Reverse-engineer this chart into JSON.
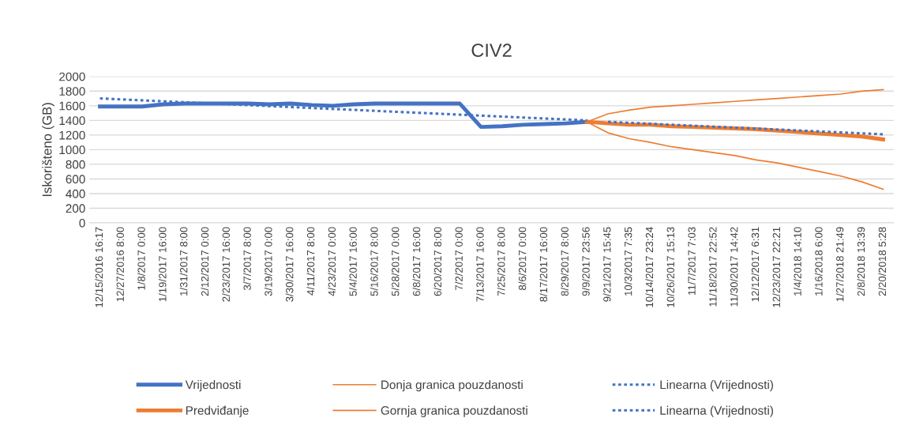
{
  "chart_data": {
    "type": "line",
    "title": "CIV2",
    "ylabel": "Iskorišteno (GB)",
    "categories": [
      "12/15/2016 16:17",
      "12/27/2016 8:00",
      "1/8/2017 0:00",
      "1/19/2017 16:00",
      "1/31/2017 8:00",
      "2/12/2017 0:00",
      "2/23/2017 16:00",
      "3/7/2017 8:00",
      "3/19/2017 0:00",
      "3/30/2017 16:00",
      "4/11/2017 8:00",
      "4/23/2017 0:00",
      "5/4/2017 16:00",
      "5/16/2017 8:00",
      "5/28/2017 0:00",
      "6/8/2017 16:00",
      "6/20/2017 8:00",
      "7/2/2017 0:00",
      "7/13/2017 16:00",
      "7/25/2017 8:00",
      "8/6/2017 0:00",
      "8/17/2017 16:00",
      "8/29/2017 8:00",
      "9/9/2017 23:56",
      "9/21/2017 15:45",
      "10/3/2017 7:35",
      "10/14/2017 23:24",
      "10/26/2017 15:13",
      "11/7/2017 7:03",
      "11/18/2017 22:52",
      "11/30/2017 14:42",
      "12/12/2017 6:31",
      "12/23/2017 22:21",
      "1/4/2018 14:10",
      "1/16/2018 6:00",
      "1/27/2018 21:49",
      "2/8/2018 13:39",
      "2/20/2018 5:28"
    ],
    "ylim": [
      0,
      2000
    ],
    "yticks": [
      0,
      200,
      400,
      600,
      800,
      1000,
      1200,
      1400,
      1600,
      1800,
      2000
    ],
    "grid": "y",
    "legend": "bottom",
    "series": [
      {
        "name": "Vrijednosti",
        "color": "#4472c4",
        "line_style": "solid",
        "values": [
          1590,
          1590,
          1590,
          1620,
          1630,
          1630,
          1630,
          1630,
          1620,
          1630,
          1610,
          1600,
          1620,
          1630,
          1630,
          1630,
          1630,
          1630,
          1310,
          1320,
          1340,
          1350,
          1360,
          1380,
          null,
          null,
          null,
          null,
          null,
          null,
          null,
          null,
          null,
          null,
          null,
          null,
          null,
          null
        ]
      },
      {
        "name": "Predviđanje",
        "color": "#ed7d31",
        "line_style": "solid",
        "values": [
          null,
          null,
          null,
          null,
          null,
          null,
          null,
          null,
          null,
          null,
          null,
          null,
          null,
          null,
          null,
          null,
          null,
          null,
          null,
          null,
          null,
          null,
          null,
          1380,
          1360,
          1340,
          1340,
          1320,
          1310,
          1300,
          1290,
          1280,
          1260,
          1240,
          1220,
          1200,
          1180,
          1140
        ]
      },
      {
        "name": "Donja granica pouzdanosti",
        "color": "#ed7d31",
        "line_style": "solid",
        "values": [
          null,
          null,
          null,
          null,
          null,
          null,
          null,
          null,
          null,
          null,
          null,
          null,
          null,
          null,
          null,
          null,
          null,
          null,
          null,
          null,
          null,
          null,
          null,
          1380,
          1230,
          1150,
          1100,
          1040,
          1000,
          960,
          920,
          860,
          820,
          760,
          700,
          640,
          560,
          460
        ]
      },
      {
        "name": "Gornja granica pouzdanosti",
        "color": "#ed7d31",
        "line_style": "solid",
        "values": [
          null,
          null,
          null,
          null,
          null,
          null,
          null,
          null,
          null,
          null,
          null,
          null,
          null,
          null,
          null,
          null,
          null,
          null,
          null,
          null,
          null,
          null,
          null,
          1380,
          1490,
          1540,
          1580,
          1600,
          1620,
          1640,
          1660,
          1680,
          1700,
          1720,
          1740,
          1760,
          1800,
          1820
        ]
      },
      {
        "name": "Linearna (Vrijednosti)",
        "color": "#4472c4",
        "line_style": "dotted",
        "values": [
          1700,
          null,
          null,
          null,
          null,
          null,
          null,
          null,
          null,
          null,
          null,
          null,
          null,
          null,
          null,
          null,
          null,
          null,
          null,
          null,
          null,
          null,
          null,
          1400,
          null,
          null,
          null,
          null,
          null,
          null,
          null,
          null,
          null,
          null,
          null,
          null,
          null,
          null
        ]
      },
      {
        "name": "Linearna (Vrijednosti)",
        "color": "#4472c4",
        "line_style": "dotted",
        "values": [
          null,
          null,
          null,
          null,
          null,
          null,
          null,
          null,
          null,
          null,
          null,
          null,
          null,
          null,
          null,
          null,
          null,
          null,
          null,
          null,
          null,
          null,
          null,
          null,
          1380,
          null,
          null,
          null,
          null,
          null,
          null,
          null,
          null,
          null,
          null,
          null,
          null,
          1210
        ]
      }
    ]
  }
}
